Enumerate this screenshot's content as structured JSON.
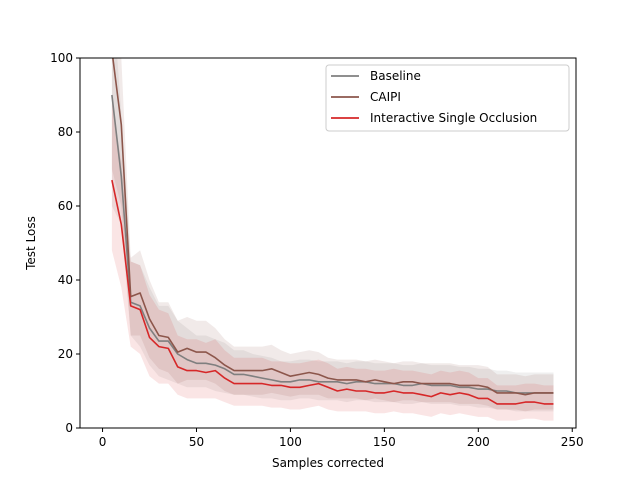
{
  "chart_data": {
    "type": "line",
    "title": "",
    "xlabel": "Samples corrected",
    "ylabel": "Test Loss",
    "xlim": [
      -12,
      252
    ],
    "ylim": [
      0,
      100
    ],
    "xticks": [
      0,
      50,
      100,
      150,
      200,
      250
    ],
    "yticks": [
      0,
      20,
      40,
      60,
      80,
      100
    ],
    "legend_position": "top-right",
    "series": [
      {
        "name": "Baseline",
        "color": "#7f7f7f",
        "x": [
          5,
          10,
          15,
          20,
          25,
          30,
          35,
          40,
          45,
          50,
          55,
          60,
          65,
          70,
          75,
          80,
          85,
          90,
          95,
          100,
          105,
          110,
          115,
          120,
          125,
          130,
          135,
          140,
          145,
          150,
          155,
          160,
          165,
          170,
          175,
          180,
          185,
          190,
          195,
          200,
          205,
          210,
          215,
          220,
          225,
          230,
          235,
          240
        ],
        "y": [
          90,
          68,
          34,
          33,
          27,
          23.5,
          23.5,
          20,
          18.5,
          17.5,
          17.5,
          17,
          16,
          14.5,
          14.5,
          14,
          13.5,
          13,
          12.5,
          12.5,
          13,
          13,
          12.5,
          12.5,
          12.5,
          12,
          12.5,
          12.5,
          12,
          12,
          12,
          11.5,
          11.5,
          12,
          11.5,
          11.5,
          11.5,
          11,
          11,
          10.5,
          10.5,
          10,
          10,
          9.5,
          9.5,
          9.5,
          9.5,
          9.5
        ],
        "band": [
          [
            60,
            120
          ],
          [
            55,
            85
          ],
          [
            25,
            45
          ],
          [
            22,
            44
          ],
          [
            17,
            38
          ],
          [
            14,
            33
          ],
          [
            13,
            33
          ],
          [
            12,
            29
          ],
          [
            11,
            27
          ],
          [
            11,
            25
          ],
          [
            11,
            25
          ],
          [
            10,
            24
          ],
          [
            9.5,
            23
          ],
          [
            9,
            21
          ],
          [
            9,
            21
          ],
          [
            8.5,
            20
          ],
          [
            8,
            19.5
          ],
          [
            8,
            19
          ],
          [
            7.5,
            18
          ],
          [
            7.5,
            18
          ],
          [
            8,
            18.5
          ],
          [
            8,
            18.5
          ],
          [
            7.5,
            18
          ],
          [
            7.5,
            18
          ],
          [
            7.5,
            18
          ],
          [
            7,
            17.5
          ],
          [
            7.5,
            18
          ],
          [
            7.5,
            18
          ],
          [
            7,
            17.5
          ],
          [
            7,
            17.5
          ],
          [
            7,
            17.5
          ],
          [
            6.5,
            17
          ],
          [
            6.5,
            17
          ],
          [
            7,
            17.5
          ],
          [
            6.5,
            17
          ],
          [
            6.5,
            17
          ],
          [
            6.5,
            17
          ],
          [
            6,
            16.5
          ],
          [
            6,
            16.5
          ],
          [
            5.5,
            16
          ],
          [
            5.5,
            16
          ],
          [
            5,
            15.5
          ],
          [
            5,
            15.5
          ],
          [
            4.5,
            15
          ],
          [
            4.5,
            15
          ],
          [
            4.5,
            15
          ],
          [
            4.5,
            15
          ],
          [
            4.5,
            15
          ]
        ]
      },
      {
        "name": "CAIPI",
        "color": "#8c564b",
        "x": [
          5,
          10,
          15,
          20,
          25,
          30,
          35,
          40,
          45,
          50,
          55,
          60,
          65,
          70,
          75,
          80,
          85,
          90,
          95,
          100,
          105,
          110,
          115,
          120,
          125,
          130,
          135,
          140,
          145,
          150,
          155,
          160,
          165,
          170,
          175,
          180,
          185,
          190,
          195,
          200,
          205,
          210,
          215,
          220,
          225,
          230,
          235,
          240
        ],
        "y": [
          102,
          82,
          35.5,
          36.5,
          29.5,
          25,
          24.5,
          20.5,
          21.5,
          20.5,
          20.5,
          19,
          17,
          15.5,
          15.5,
          15.5,
          15.5,
          16,
          15,
          14,
          14.5,
          15,
          14.5,
          13.5,
          13,
          13,
          13,
          12.5,
          13,
          12.5,
          12,
          12.5,
          12.5,
          12,
          12,
          12,
          12,
          11.5,
          11.5,
          11.5,
          11,
          9.5,
          9.5,
          9.5,
          9,
          9.5,
          9.5,
          9.5
        ],
        "band": [
          [
            70,
            120
          ],
          [
            60,
            100
          ],
          [
            25,
            46
          ],
          [
            25,
            48
          ],
          [
            19,
            40
          ],
          [
            16,
            34
          ],
          [
            15,
            34
          ],
          [
            12,
            29
          ],
          [
            13,
            30
          ],
          [
            13,
            29
          ],
          [
            13,
            29
          ],
          [
            12,
            27
          ],
          [
            10,
            24
          ],
          [
            9,
            22
          ],
          [
            9,
            22
          ],
          [
            9,
            22
          ],
          [
            9,
            22
          ],
          [
            9.5,
            22.5
          ],
          [
            9,
            21
          ],
          [
            8.5,
            20
          ],
          [
            9,
            20.5
          ],
          [
            9,
            21
          ],
          [
            9,
            20.5
          ],
          [
            8,
            19
          ],
          [
            8,
            18.5
          ],
          [
            8,
            18.5
          ],
          [
            8,
            18.5
          ],
          [
            7.5,
            18
          ],
          [
            8,
            18.5
          ],
          [
            7.5,
            18
          ],
          [
            7,
            17.5
          ],
          [
            7.5,
            18
          ],
          [
            7.5,
            18
          ],
          [
            7,
            17.5
          ],
          [
            7,
            17.5
          ],
          [
            7,
            17.5
          ],
          [
            7,
            17.5
          ],
          [
            6.5,
            17
          ],
          [
            6.5,
            17
          ],
          [
            6.5,
            17
          ],
          [
            6,
            16.5
          ],
          [
            5,
            14.5
          ],
          [
            5,
            14.5
          ],
          [
            5,
            14.5
          ],
          [
            4.5,
            14
          ],
          [
            5,
            14.5
          ],
          [
            5,
            14.5
          ],
          [
            5,
            14.5
          ]
        ]
      },
      {
        "name": "Interactive Single Occlusion",
        "color": "#d62728",
        "x": [
          5,
          10,
          15,
          20,
          25,
          30,
          35,
          40,
          45,
          50,
          55,
          60,
          65,
          70,
          75,
          80,
          85,
          90,
          95,
          100,
          105,
          110,
          115,
          120,
          125,
          130,
          135,
          140,
          145,
          150,
          155,
          160,
          165,
          170,
          175,
          180,
          185,
          190,
          195,
          200,
          205,
          210,
          215,
          220,
          225,
          230,
          235,
          240
        ],
        "y": [
          67,
          55,
          33,
          32,
          24.5,
          22,
          21.5,
          16.5,
          15.5,
          15.5,
          15,
          15.5,
          13.5,
          12,
          12,
          12,
          12,
          11.5,
          11.5,
          11,
          11,
          11.5,
          12,
          11,
          10,
          10.5,
          10,
          10,
          9.5,
          9.5,
          10,
          9.5,
          9.5,
          9,
          8.5,
          9.5,
          9,
          9.5,
          9,
          8,
          8,
          6.5,
          6.5,
          6.5,
          7,
          7,
          6.5,
          6.5
        ],
        "band": [
          [
            48,
            88
          ],
          [
            38,
            72
          ],
          [
            22,
            45
          ],
          [
            20,
            44
          ],
          [
            14,
            36
          ],
          [
            12,
            32
          ],
          [
            12,
            31
          ],
          [
            9,
            25
          ],
          [
            8,
            24
          ],
          [
            8,
            24
          ],
          [
            8,
            23
          ],
          [
            8,
            24
          ],
          [
            7,
            21
          ],
          [
            6,
            19
          ],
          [
            6,
            19
          ],
          [
            6,
            19
          ],
          [
            6,
            19
          ],
          [
            5.5,
            18
          ],
          [
            5.5,
            18
          ],
          [
            5,
            17.5
          ],
          [
            5,
            17.5
          ],
          [
            5.5,
            18
          ],
          [
            6,
            18.5
          ],
          [
            5,
            17.5
          ],
          [
            4.5,
            16
          ],
          [
            4.5,
            16.5
          ],
          [
            4.5,
            16
          ],
          [
            4.5,
            16
          ],
          [
            4,
            15.5
          ],
          [
            4,
            15.5
          ],
          [
            4.5,
            16
          ],
          [
            4,
            15.5
          ],
          [
            4,
            15.5
          ],
          [
            3.5,
            15
          ],
          [
            3,
            14.5
          ],
          [
            4,
            15.5
          ],
          [
            3.5,
            15
          ],
          [
            4,
            15.5
          ],
          [
            3.5,
            15
          ],
          [
            3,
            13.5
          ],
          [
            3,
            13.5
          ],
          [
            2,
            11.5
          ],
          [
            2,
            11.5
          ],
          [
            2,
            11.5
          ],
          [
            2.5,
            12
          ],
          [
            2.5,
            12
          ],
          [
            2,
            11.5
          ],
          [
            2,
            11.5
          ]
        ]
      }
    ]
  }
}
